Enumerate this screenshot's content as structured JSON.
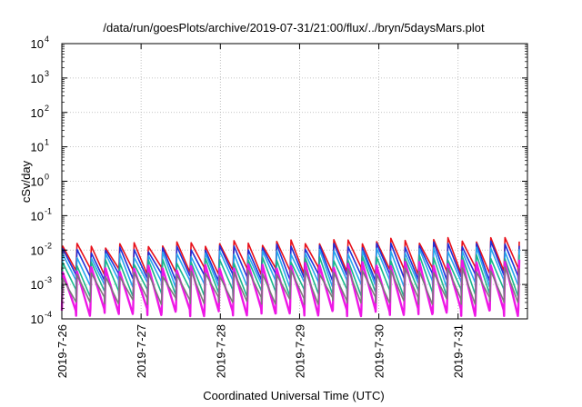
{
  "chart_data": {
    "type": "line",
    "title": "/data/run/goesPlots/archive/2019-07-31/21:00/flux/../bryn/5daysMars.plot",
    "xlabel": "Coordinated Universal Time (UTC)",
    "ylabel": "cSv/day",
    "y_scale": "log",
    "ylim": [
      0.0001,
      10000
    ],
    "xlim": [
      "2019-07-26",
      "2019-07-31T21:00"
    ],
    "grid": true,
    "legend": "none",
    "x_ticks": [
      "2019-7-26",
      "2019-7-27",
      "2019-7-28",
      "2019-7-29",
      "2019-7-30",
      "2019-7-31"
    ],
    "y_ticks": [
      {
        "base": "10",
        "exp": "-4"
      },
      {
        "base": "10",
        "exp": "-3"
      },
      {
        "base": "10",
        "exp": "-2"
      },
      {
        "base": "10",
        "exp": "-1"
      },
      {
        "base": "10",
        "exp": "0"
      },
      {
        "base": "10",
        "exp": "1"
      },
      {
        "base": "10",
        "exp": "2"
      },
      {
        "base": "10",
        "exp": "3"
      },
      {
        "base": "10",
        "exp": "4"
      }
    ],
    "sawtooth": {
      "period_days": 0.18,
      "series": [
        {
          "color": "#e8101a",
          "peak_base": 0.013,
          "peak_end": 0.021,
          "trough": 0.0026
        },
        {
          "color": "#1f2fd8",
          "peak_base": 0.0095,
          "peak_end": 0.016,
          "trough": 0.0017
        },
        {
          "color": "#26a6ee",
          "peak_base": 0.0065,
          "peak_end": 0.011,
          "trough": 0.0011
        },
        {
          "color": "#18b88a",
          "peak_base": 0.0042,
          "peak_end": 0.0065,
          "trough": 0.0006
        },
        {
          "color": "#ee16e6",
          "peak_base": 0.0026,
          "peak_end": 0.0045,
          "trough": 0.00016
        },
        {
          "color": "#7a7a7a",
          "peak_base": 0.0018,
          "peak_end": 0.0028,
          "trough": 0.00035
        }
      ]
    }
  }
}
